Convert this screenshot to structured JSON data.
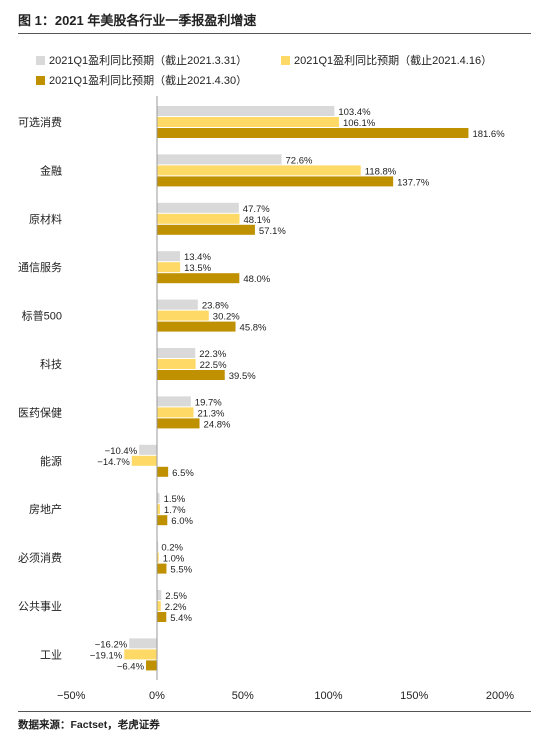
{
  "figure": {
    "title": "图 1：2021 年美股各行业一季报盈利增速",
    "source": "数据来源：Factset，老虎证券"
  },
  "chart_data": {
    "type": "bar",
    "orientation": "horizontal",
    "categories": [
      "可选消费",
      "金融",
      "原材料",
      "通信服务",
      "标普500",
      "科技",
      "医药保健",
      "能源",
      "房地产",
      "必须消费",
      "公共事业",
      "工业"
    ],
    "series": [
      {
        "name": "2021Q1盈利同比预期（截止2021.3.31）",
        "color": "#d9d9d9",
        "values": [
          103.4,
          72.6,
          47.7,
          13.4,
          23.8,
          22.3,
          19.7,
          -10.4,
          1.5,
          0.2,
          2.5,
          -16.2
        ]
      },
      {
        "name": "2021Q1盈利同比预期（截止2021.4.16）",
        "color": "#ffd966",
        "values": [
          106.1,
          118.8,
          48.1,
          13.5,
          30.2,
          22.5,
          21.3,
          -14.7,
          1.7,
          1.0,
          2.2,
          -19.1
        ]
      },
      {
        "name": "2021Q1盈利同比预期（截止2021.4.30）",
        "color": "#bf9000",
        "values": [
          181.6,
          137.7,
          57.1,
          48.0,
          45.8,
          39.5,
          24.8,
          6.5,
          6.0,
          5.5,
          5.4,
          -6.4
        ]
      }
    ],
    "xlim": [
      -50,
      200
    ],
    "xticks": [
      -50,
      0,
      50,
      100,
      150,
      200
    ],
    "xtick_labels": [
      "−50%",
      "0%",
      "50%",
      "100%",
      "150%",
      "200%"
    ],
    "value_suffix": "%",
    "grid": false,
    "legend_position": "top"
  }
}
